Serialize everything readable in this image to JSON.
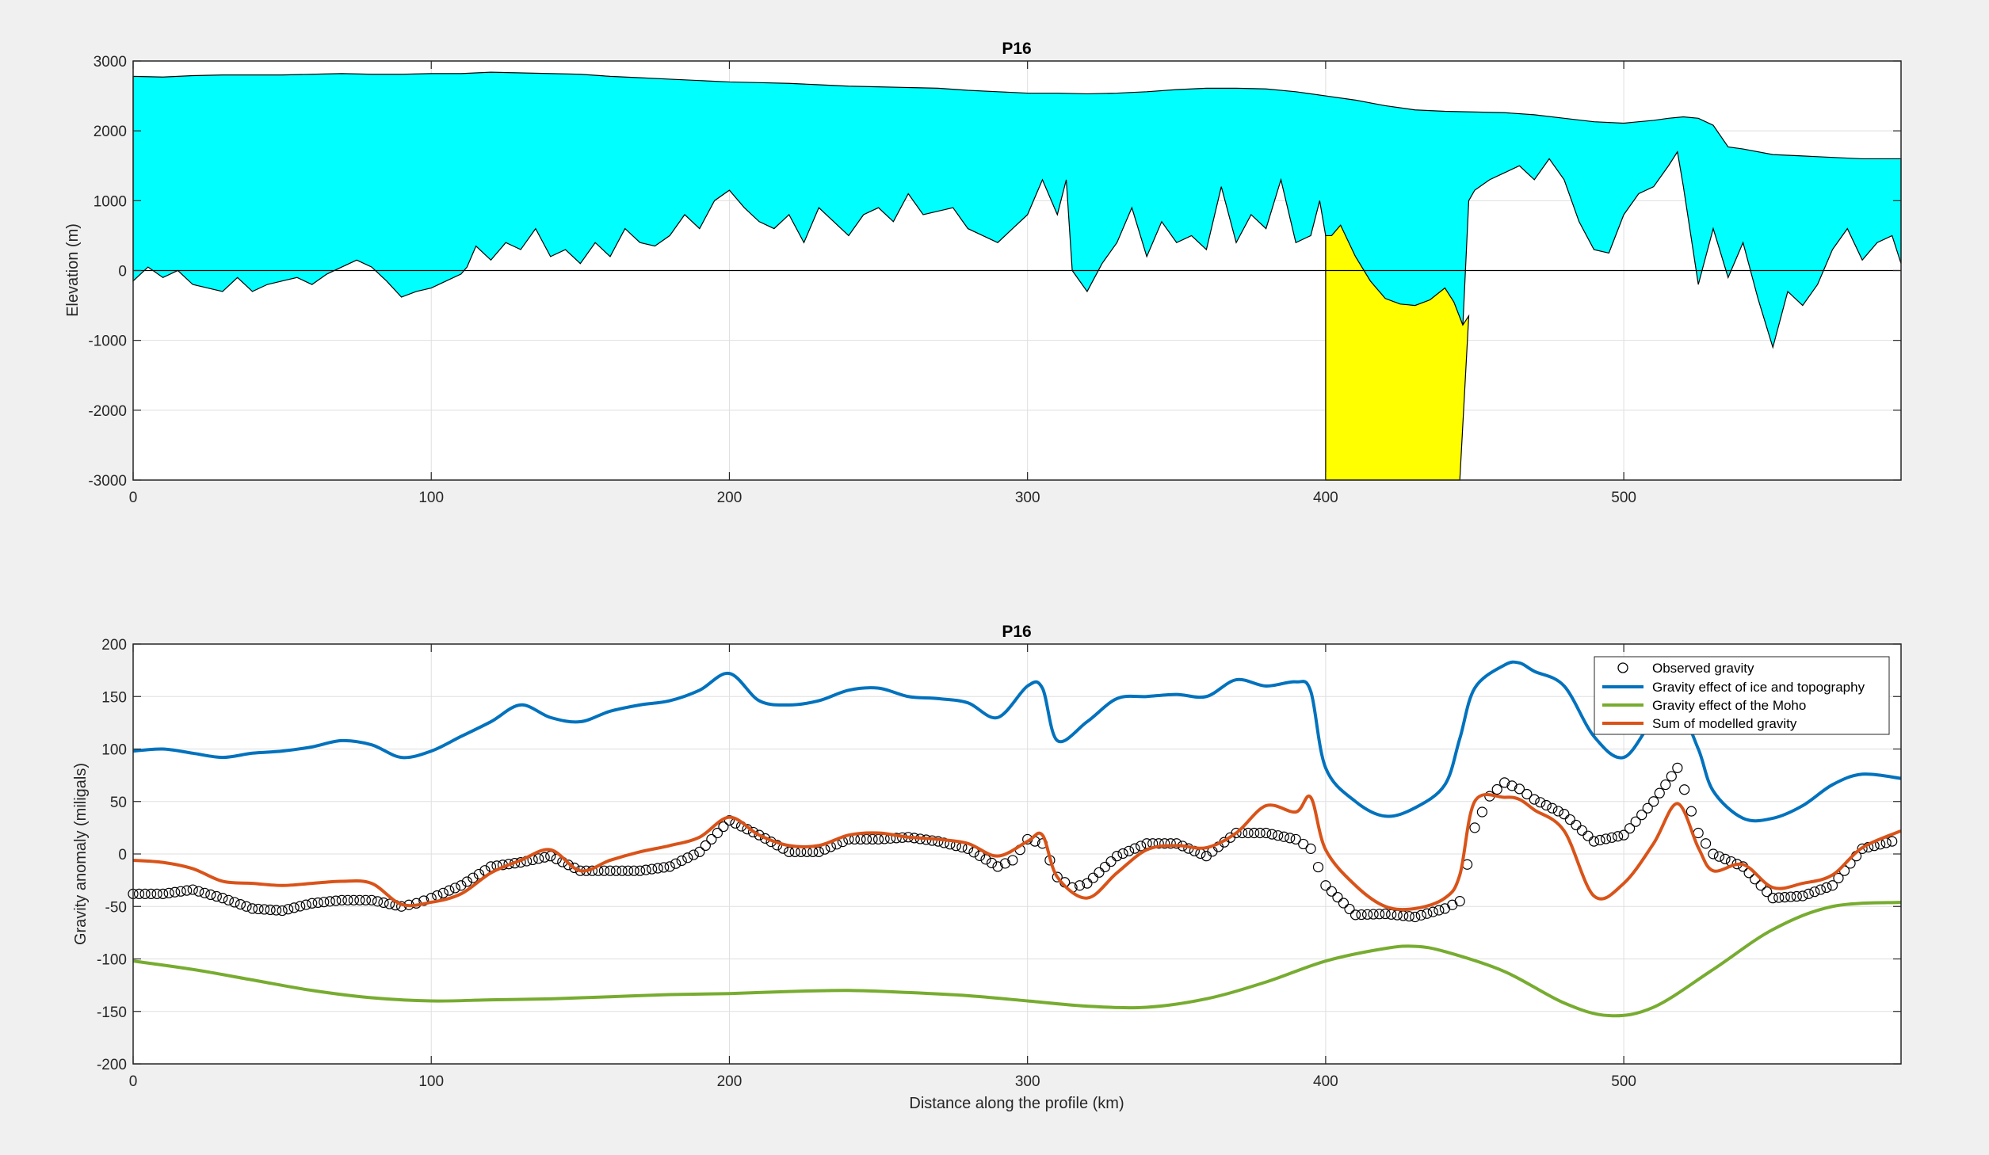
{
  "chart_data": [
    {
      "type": "area",
      "title": "P16",
      "xlabel": "",
      "ylabel": "Elevation (m)",
      "xlim": [
        0,
        593
      ],
      "ylim": [
        -3000,
        3000
      ],
      "xticks": [
        0,
        100,
        200,
        300,
        400,
        500
      ],
      "yticks": [
        -3000,
        -2000,
        -1000,
        0,
        1000,
        2000,
        3000
      ],
      "grid": true,
      "colors": {
        "ice": "#00ffff",
        "sediment": "#ffff00",
        "outline": "#000000",
        "zero_line": "#000000"
      },
      "ice_surface": {
        "x": [
          0,
          10,
          20,
          30,
          40,
          50,
          60,
          70,
          80,
          90,
          100,
          110,
          120,
          130,
          140,
          150,
          160,
          170,
          180,
          190,
          200,
          210,
          220,
          230,
          240,
          250,
          260,
          270,
          280,
          290,
          300,
          310,
          320,
          330,
          340,
          350,
          360,
          370,
          380,
          390,
          400,
          410,
          420,
          430,
          440,
          450,
          460,
          470,
          480,
          490,
          500,
          505,
          510,
          515,
          520,
          525,
          530,
          535,
          540,
          550,
          560,
          570,
          580,
          593
        ],
        "y": [
          2780,
          2770,
          2790,
          2800,
          2800,
          2800,
          2810,
          2820,
          2810,
          2810,
          2820,
          2820,
          2840,
          2830,
          2820,
          2810,
          2780,
          2760,
          2740,
          2720,
          2700,
          2690,
          2680,
          2660,
          2640,
          2630,
          2620,
          2610,
          2580,
          2560,
          2540,
          2540,
          2530,
          2540,
          2560,
          2590,
          2610,
          2610,
          2600,
          2560,
          2500,
          2440,
          2360,
          2300,
          2280,
          2270,
          2260,
          2230,
          2180,
          2130,
          2110,
          2130,
          2150,
          2180,
          2200,
          2180,
          2080,
          1770,
          1740,
          1660,
          1640,
          1620,
          1600,
          1600
        ]
      },
      "bed": {
        "x": [
          0,
          5,
          10,
          15,
          20,
          25,
          30,
          35,
          40,
          45,
          50,
          55,
          60,
          65,
          70,
          75,
          80,
          85,
          90,
          95,
          100,
          105,
          110,
          112,
          115,
          120,
          125,
          130,
          135,
          140,
          145,
          150,
          155,
          160,
          165,
          170,
          175,
          180,
          185,
          190,
          195,
          200,
          205,
          210,
          215,
          220,
          225,
          230,
          235,
          240,
          245,
          250,
          255,
          260,
          265,
          270,
          275,
          280,
          285,
          290,
          295,
          300,
          305,
          310,
          313,
          315,
          320,
          325,
          330,
          335,
          340,
          345,
          350,
          355,
          360,
          365,
          370,
          375,
          380,
          385,
          390,
          395,
          398,
          400,
          402,
          405,
          410,
          415,
          420,
          425,
          430,
          435,
          440,
          443,
          446,
          448,
          450,
          455,
          460,
          465,
          470,
          475,
          480,
          485,
          490,
          495,
          500,
          505,
          510,
          515,
          518,
          520,
          525,
          530,
          535,
          540,
          545,
          550,
          555,
          560,
          565,
          570,
          575,
          580,
          585,
          590,
          593
        ],
        "y": [
          -150,
          50,
          -100,
          0,
          -200,
          -250,
          -300,
          -100,
          -300,
          -200,
          -150,
          -100,
          -200,
          -50,
          50,
          150,
          50,
          -150,
          -380,
          -300,
          -250,
          -150,
          -50,
          50,
          350,
          150,
          400,
          300,
          600,
          200,
          300,
          100,
          400,
          200,
          600,
          400,
          350,
          500,
          800,
          600,
          1000,
          1150,
          900,
          700,
          600,
          800,
          400,
          900,
          700,
          500,
          800,
          900,
          700,
          1100,
          800,
          850,
          900,
          600,
          500,
          400,
          600,
          800,
          1300,
          800,
          1300,
          0,
          -300,
          100,
          400,
          900,
          200,
          700,
          400,
          500,
          300,
          1200,
          400,
          800,
          600,
          1300,
          400,
          500,
          1000,
          500,
          0,
          550,
          100,
          -300,
          -450,
          -500,
          -600,
          -500,
          -350,
          -550,
          -800,
          1000,
          1150,
          1300,
          1400,
          1500,
          1300,
          1600,
          1300,
          700,
          300,
          250,
          800,
          1100,
          1200,
          1500,
          1700,
          1200,
          -200,
          600,
          -100,
          400,
          -400,
          -1100,
          -300,
          -500,
          -200,
          300,
          600,
          150,
          400,
          500,
          100
        ]
      },
      "sediment_body": {
        "x": [
          400,
          402,
          405,
          410,
          415,
          420,
          425,
          430,
          435,
          440,
          443,
          446,
          448,
          445,
          400
        ],
        "y": [
          500,
          500,
          650,
          200,
          -150,
          -400,
          -480,
          -500,
          -420,
          -250,
          -450,
          -780,
          -650,
          -3000,
          -3000
        ]
      }
    },
    {
      "type": "line",
      "title": "P16",
      "xlabel": "Distance along the profile (km)",
      "ylabel": "Gravity anomaly (miligals)",
      "xlim": [
        0,
        593
      ],
      "ylim": [
        -200,
        200
      ],
      "xticks": [
        0,
        100,
        200,
        300,
        400,
        500
      ],
      "yticks": [
        -200,
        -150,
        -100,
        -50,
        0,
        50,
        100,
        150,
        200
      ],
      "grid": true,
      "legend_position": "top-right",
      "series": [
        {
          "name": "Observed gravity",
          "marker": "circle",
          "color": "#000000",
          "x": [
            0,
            10,
            20,
            30,
            40,
            50,
            60,
            70,
            80,
            90,
            95,
            100,
            110,
            120,
            130,
            140,
            150,
            160,
            170,
            180,
            190,
            200,
            210,
            220,
            230,
            240,
            250,
            260,
            270,
            280,
            290,
            295,
            300,
            305,
            310,
            315,
            320,
            330,
            340,
            350,
            360,
            370,
            380,
            390,
            395,
            400,
            410,
            420,
            430,
            440,
            445,
            450,
            455,
            460,
            465,
            470,
            480,
            490,
            500,
            510,
            518,
            525,
            530,
            540,
            550,
            560,
            570,
            580,
            590
          ],
          "y": [
            -38,
            -38,
            -34,
            -42,
            -52,
            -54,
            -47,
            -44,
            -44,
            -50,
            -47,
            -42,
            -30,
            -12,
            -8,
            -2,
            -16,
            -16,
            -16,
            -12,
            2,
            32,
            18,
            2,
            2,
            14,
            14,
            16,
            12,
            5,
            -12,
            -6,
            14,
            10,
            -22,
            -32,
            -28,
            -2,
            10,
            10,
            -2,
            20,
            20,
            14,
            5,
            -30,
            -58,
            -57,
            -60,
            -52,
            -45,
            25,
            55,
            68,
            62,
            52,
            38,
            12,
            18,
            50,
            82,
            20,
            0,
            -12,
            -42,
            -40,
            -30,
            5,
            12
          ]
        },
        {
          "name": "Gravity effect of ice and topography",
          "marker": "none",
          "color": "#0072bd",
          "x": [
            0,
            10,
            20,
            30,
            40,
            50,
            60,
            70,
            80,
            90,
            100,
            110,
            120,
            130,
            140,
            150,
            160,
            170,
            180,
            190,
            200,
            210,
            220,
            230,
            240,
            250,
            260,
            270,
            280,
            290,
            300,
            305,
            310,
            320,
            330,
            340,
            350,
            360,
            370,
            380,
            390,
            395,
            400,
            410,
            420,
            430,
            440,
            445,
            450,
            460,
            465,
            470,
            480,
            490,
            500,
            510,
            518,
            525,
            530,
            540,
            550,
            560,
            570,
            580,
            593
          ],
          "y": [
            98,
            100,
            96,
            92,
            96,
            98,
            102,
            108,
            104,
            92,
            98,
            112,
            126,
            142,
            130,
            126,
            136,
            142,
            146,
            156,
            172,
            146,
            142,
            146,
            156,
            158,
            150,
            148,
            144,
            130,
            160,
            158,
            108,
            126,
            148,
            150,
            152,
            150,
            166,
            160,
            164,
            155,
            82,
            50,
            36,
            44,
            66,
            110,
            158,
            180,
            182,
            174,
            160,
            112,
            92,
            128,
            140,
            100,
            60,
            34,
            34,
            46,
            66,
            76,
            72
          ]
        },
        {
          "name": "Gravity effect of the Moho",
          "marker": "none",
          "color": "#77ac30",
          "x": [
            0,
            20,
            40,
            60,
            80,
            100,
            120,
            140,
            160,
            180,
            200,
            220,
            240,
            260,
            280,
            300,
            320,
            340,
            360,
            380,
            400,
            420,
            430,
            440,
            460,
            480,
            495,
            510,
            530,
            550,
            570,
            593
          ],
          "y": [
            -102,
            -110,
            -120,
            -130,
            -137,
            -140,
            -139,
            -138,
            -136,
            -134,
            -133,
            -131,
            -130,
            -132,
            -135,
            -140,
            -145,
            -146,
            -138,
            -122,
            -102,
            -90,
            -88,
            -93,
            -112,
            -142,
            -154,
            -146,
            -110,
            -72,
            -50,
            -46
          ]
        },
        {
          "name": "Sum of modelled gravity",
          "marker": "none",
          "color": "#d95319",
          "x": [
            0,
            10,
            20,
            30,
            40,
            50,
            60,
            70,
            80,
            90,
            100,
            110,
            120,
            130,
            140,
            150,
            160,
            170,
            180,
            190,
            200,
            210,
            220,
            230,
            240,
            250,
            260,
            270,
            280,
            290,
            300,
            305,
            310,
            320,
            330,
            340,
            350,
            360,
            370,
            380,
            390,
            395,
            400,
            410,
            420,
            430,
            440,
            445,
            450,
            460,
            465,
            470,
            480,
            490,
            500,
            510,
            518,
            525,
            530,
            540,
            550,
            560,
            570,
            580,
            593
          ],
          "y": [
            -6,
            -8,
            -14,
            -26,
            -28,
            -30,
            -28,
            -26,
            -28,
            -48,
            -46,
            -38,
            -18,
            -6,
            4,
            -16,
            -6,
            2,
            8,
            16,
            35,
            18,
            8,
            8,
            18,
            20,
            16,
            14,
            10,
            -2,
            12,
            18,
            -22,
            -42,
            -18,
            4,
            8,
            6,
            20,
            46,
            40,
            54,
            4,
            -30,
            -50,
            -52,
            -42,
            -20,
            50,
            54,
            52,
            42,
            22,
            -40,
            -28,
            10,
            48,
            6,
            -16,
            -10,
            -32,
            -28,
            -20,
            6,
            22
          ]
        }
      ]
    }
  ]
}
